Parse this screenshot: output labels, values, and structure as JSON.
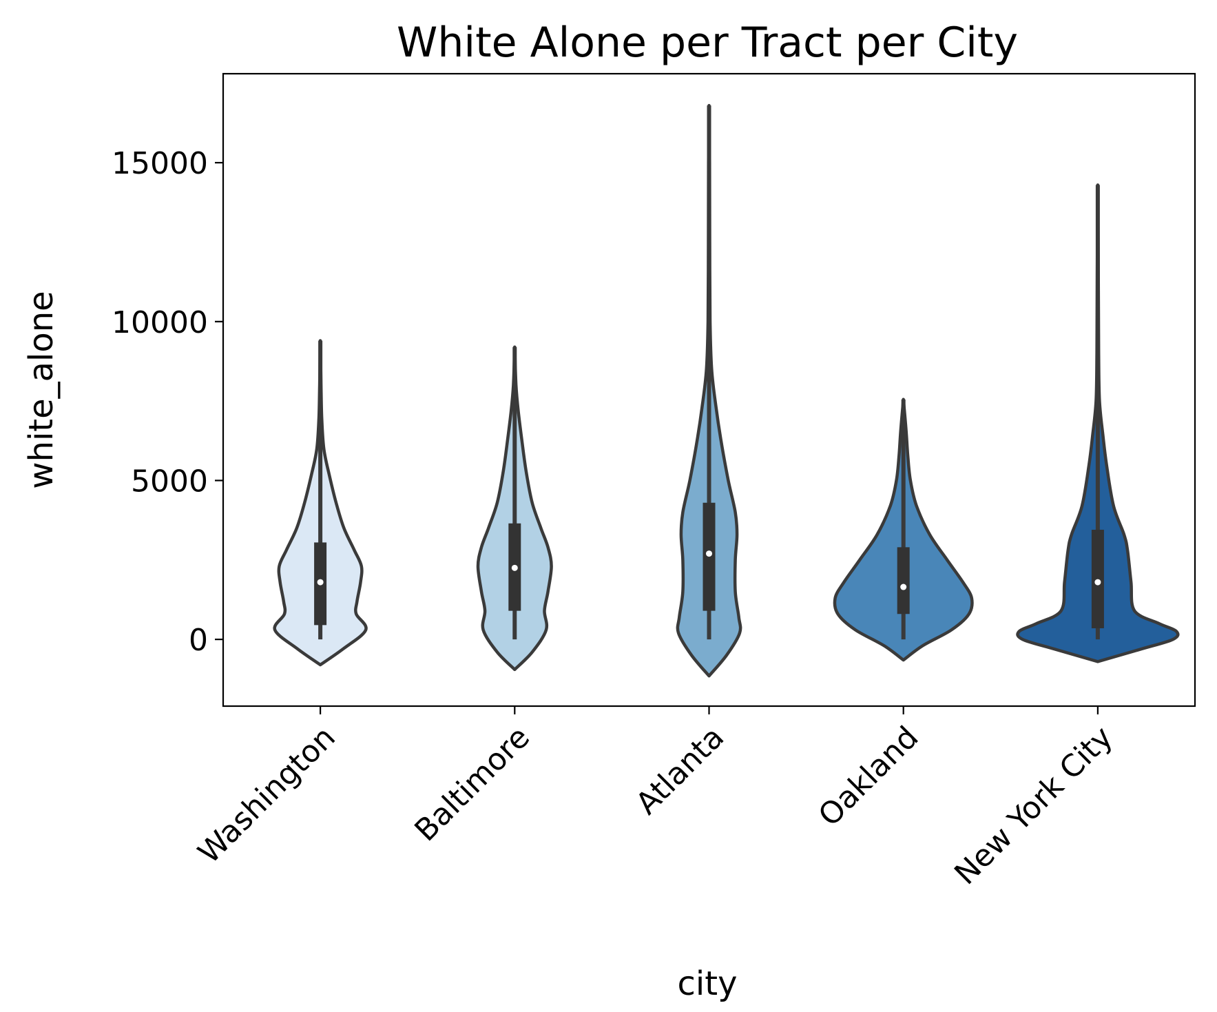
{
  "chart_data": {
    "type": "violin",
    "title": "White Alone per Tract per City",
    "xlabel": "city",
    "ylabel": "white_alone",
    "ylim": [
      -2100,
      17800
    ],
    "yticks": [
      0,
      5000,
      10000,
      15000
    ],
    "ytick_labels": [
      "0",
      "5000",
      "10000",
      "15000"
    ],
    "categories": [
      "Washington",
      "Baltimore",
      "Atlanta",
      "Oakland",
      "New York City"
    ],
    "colors": [
      "#dbe8f5",
      "#b2d1e5",
      "#7bacce",
      "#4986b8",
      "#235f9b"
    ],
    "grid": false,
    "legend": "none",
    "series": [
      {
        "category": "Washington",
        "min": 0,
        "q1": 450,
        "median": 1800,
        "q3": 3050,
        "whisker_high": 6000,
        "max": 9400,
        "density": [
          [
            -800,
            0.0
          ],
          [
            -300,
            0.26
          ],
          [
            300,
            0.52
          ],
          [
            800,
            0.41
          ],
          [
            1200,
            0.42
          ],
          [
            1800,
            0.46
          ],
          [
            2300,
            0.47
          ],
          [
            2800,
            0.39
          ],
          [
            3500,
            0.27
          ],
          [
            4300,
            0.18
          ],
          [
            5200,
            0.1
          ],
          [
            6000,
            0.04
          ],
          [
            7000,
            0.016
          ],
          [
            8000,
            0.008
          ],
          [
            9400,
            0.0
          ]
        ]
      },
      {
        "category": "Baltimore",
        "min": 0,
        "q1": 900,
        "median": 2250,
        "q3": 3650,
        "whisker_high": 7000,
        "max": 9200,
        "density": [
          [
            -950,
            0.0
          ],
          [
            -400,
            0.2
          ],
          [
            300,
            0.36
          ],
          [
            900,
            0.34
          ],
          [
            1500,
            0.38
          ],
          [
            2300,
            0.42
          ],
          [
            2900,
            0.38
          ],
          [
            3500,
            0.3
          ],
          [
            4300,
            0.2
          ],
          [
            5300,
            0.13
          ],
          [
            6300,
            0.08
          ],
          [
            7200,
            0.04
          ],
          [
            8000,
            0.015
          ],
          [
            9200,
            0.0
          ]
        ]
      },
      {
        "category": "Atlanta",
        "min": 0,
        "q1": 900,
        "median": 2700,
        "q3": 4300,
        "whisker_high": 7900,
        "max": 16800,
        "density": [
          [
            -1150,
            0.0
          ],
          [
            -500,
            0.2
          ],
          [
            200,
            0.35
          ],
          [
            700,
            0.34
          ],
          [
            1500,
            0.3
          ],
          [
            2500,
            0.3
          ],
          [
            3300,
            0.32
          ],
          [
            4000,
            0.3
          ],
          [
            5000,
            0.22
          ],
          [
            6200,
            0.14
          ],
          [
            7300,
            0.08
          ],
          [
            8500,
            0.03
          ],
          [
            10000,
            0.012
          ],
          [
            12500,
            0.008
          ],
          [
            15000,
            0.006
          ],
          [
            16800,
            0.0
          ]
        ]
      },
      {
        "category": "Oakland",
        "min": 0,
        "q1": 800,
        "median": 1650,
        "q3": 2900,
        "whisker_high": 5400,
        "max": 7550,
        "density": [
          [
            -650,
            0.0
          ],
          [
            -200,
            0.22
          ],
          [
            300,
            0.55
          ],
          [
            800,
            0.75
          ],
          [
            1300,
            0.78
          ],
          [
            1800,
            0.68
          ],
          [
            2500,
            0.5
          ],
          [
            3300,
            0.3
          ],
          [
            4200,
            0.15
          ],
          [
            5000,
            0.08
          ],
          [
            5800,
            0.05
          ],
          [
            6600,
            0.03
          ],
          [
            7550,
            0.0
          ]
        ]
      },
      {
        "category": "New York City",
        "min": 0,
        "q1": 350,
        "median": 1800,
        "q3": 3450,
        "whisker_high": 6900,
        "max": 14300,
        "density": [
          [
            -700,
            0.0
          ],
          [
            -300,
            0.5
          ],
          [
            0,
            0.86
          ],
          [
            250,
            0.9
          ],
          [
            500,
            0.7
          ],
          [
            900,
            0.42
          ],
          [
            1800,
            0.38
          ],
          [
            2800,
            0.34
          ],
          [
            3300,
            0.3
          ],
          [
            4200,
            0.18
          ],
          [
            5500,
            0.1
          ],
          [
            6400,
            0.06
          ],
          [
            7500,
            0.02
          ],
          [
            9000,
            0.01
          ],
          [
            11500,
            0.006
          ],
          [
            14300,
            0.0
          ]
        ]
      }
    ]
  }
}
